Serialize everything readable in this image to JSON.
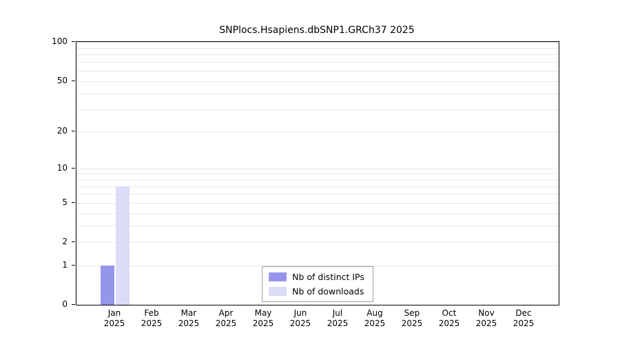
{
  "chart_data": {
    "type": "bar",
    "title": "SNPlocs.Hsapiens.dbSNP1.GRCh37 2025",
    "categories": [
      "Jan",
      "Feb",
      "Mar",
      "Apr",
      "May",
      "Jun",
      "Jul",
      "Aug",
      "Sep",
      "Oct",
      "Nov",
      "Dec"
    ],
    "category_year": "2025",
    "series": [
      {
        "name": "Nb of distinct IPs",
        "color": "#9695ec",
        "values": [
          1,
          0,
          0,
          0,
          0,
          0,
          0,
          0,
          0,
          0,
          0,
          0
        ]
      },
      {
        "name": "Nb of downloads",
        "color": "#dcdcf8",
        "values": [
          7,
          0,
          0,
          0,
          0,
          0,
          0,
          0,
          0,
          0,
          0,
          0
        ]
      }
    ],
    "yscale": "log10(x+1)",
    "ylim": [
      0,
      100
    ],
    "yticks": [
      0,
      1,
      2,
      5,
      10,
      20,
      50,
      100
    ],
    "minor_gridlines": [
      1,
      2,
      3,
      4,
      5,
      6,
      7,
      8,
      9,
      10,
      20,
      30,
      40,
      50,
      60,
      70,
      80,
      90,
      100
    ],
    "grid": "horizontal-minor",
    "legend_position": "bottom-center",
    "xlabel": "",
    "ylabel": ""
  }
}
